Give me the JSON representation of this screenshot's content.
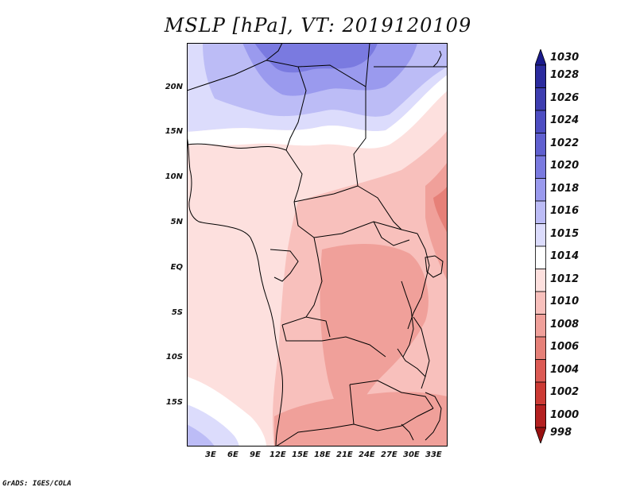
{
  "title": "MSLP [hPa], VT: 2019120109",
  "footer": "GrADS: IGES/COLA",
  "lat_labels": [
    "20N",
    "15N",
    "10N",
    "5N",
    "EQ",
    "5S",
    "10S",
    "15S"
  ],
  "lon_labels": [
    "3E",
    "6E",
    "9E",
    "12E",
    "15E",
    "18E",
    "21E",
    "24E",
    "27E",
    "30E",
    "33E"
  ],
  "colorbar": {
    "labels": [
      "1030",
      "1028",
      "1026",
      "1024",
      "1022",
      "1020",
      "1018",
      "1016",
      "1015",
      "1014",
      "1012",
      "1010",
      "1008",
      "1006",
      "1004",
      "1002",
      "1000",
      "998"
    ],
    "colors": [
      "#1a1a8c",
      "#2b2b9e",
      "#3d3db0",
      "#4d4dc2",
      "#6060d0",
      "#7a7ae0",
      "#9a9aee",
      "#bcbcf6",
      "#dcdcfc",
      "#ffffff",
      "#fde0de",
      "#f8c0bc",
      "#f0a09a",
      "#e68078",
      "#dc5a54",
      "#cc3a34",
      "#b42020",
      "#981010"
    ]
  },
  "map": {
    "variable": "mean sea level pressure",
    "units": "hPa",
    "valid_time": "2019120109"
  }
}
